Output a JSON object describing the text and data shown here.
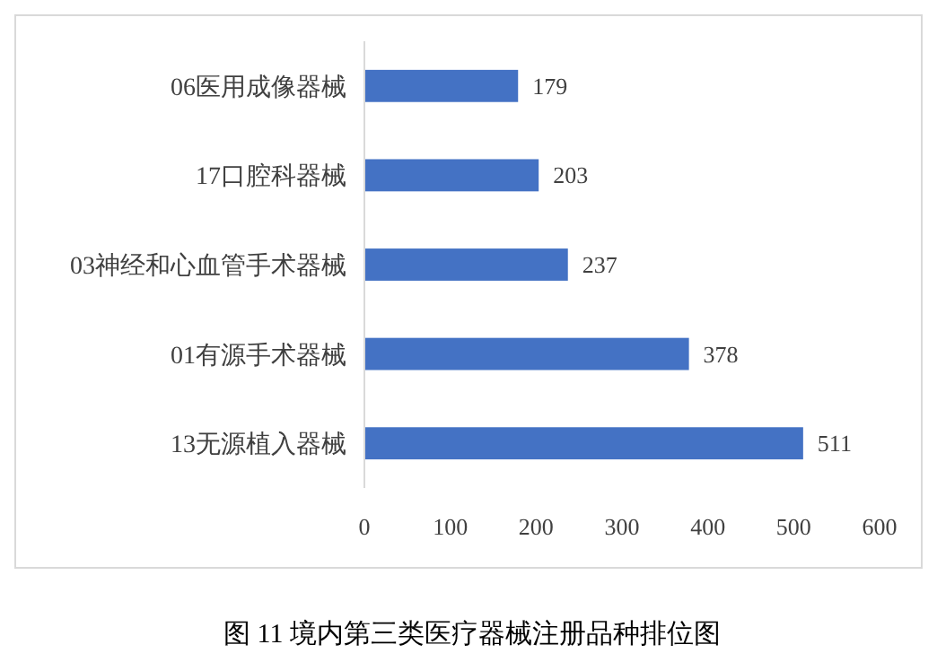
{
  "chart_data": {
    "type": "bar",
    "orientation": "horizontal",
    "title": "图 11 境内第三类医疗器械注册品种排位图",
    "categories": [
      "06医用成像器械",
      "17口腔科器械",
      "03神经和心血管手术器械",
      "01有源手术器械",
      "13无源植入器械"
    ],
    "values": [
      179,
      203,
      237,
      378,
      511
    ],
    "color": "#4472c4",
    "xlim": [
      0,
      600
    ],
    "xticks": [
      0,
      100,
      200,
      300,
      400,
      500,
      600
    ],
    "data_labels": true
  }
}
